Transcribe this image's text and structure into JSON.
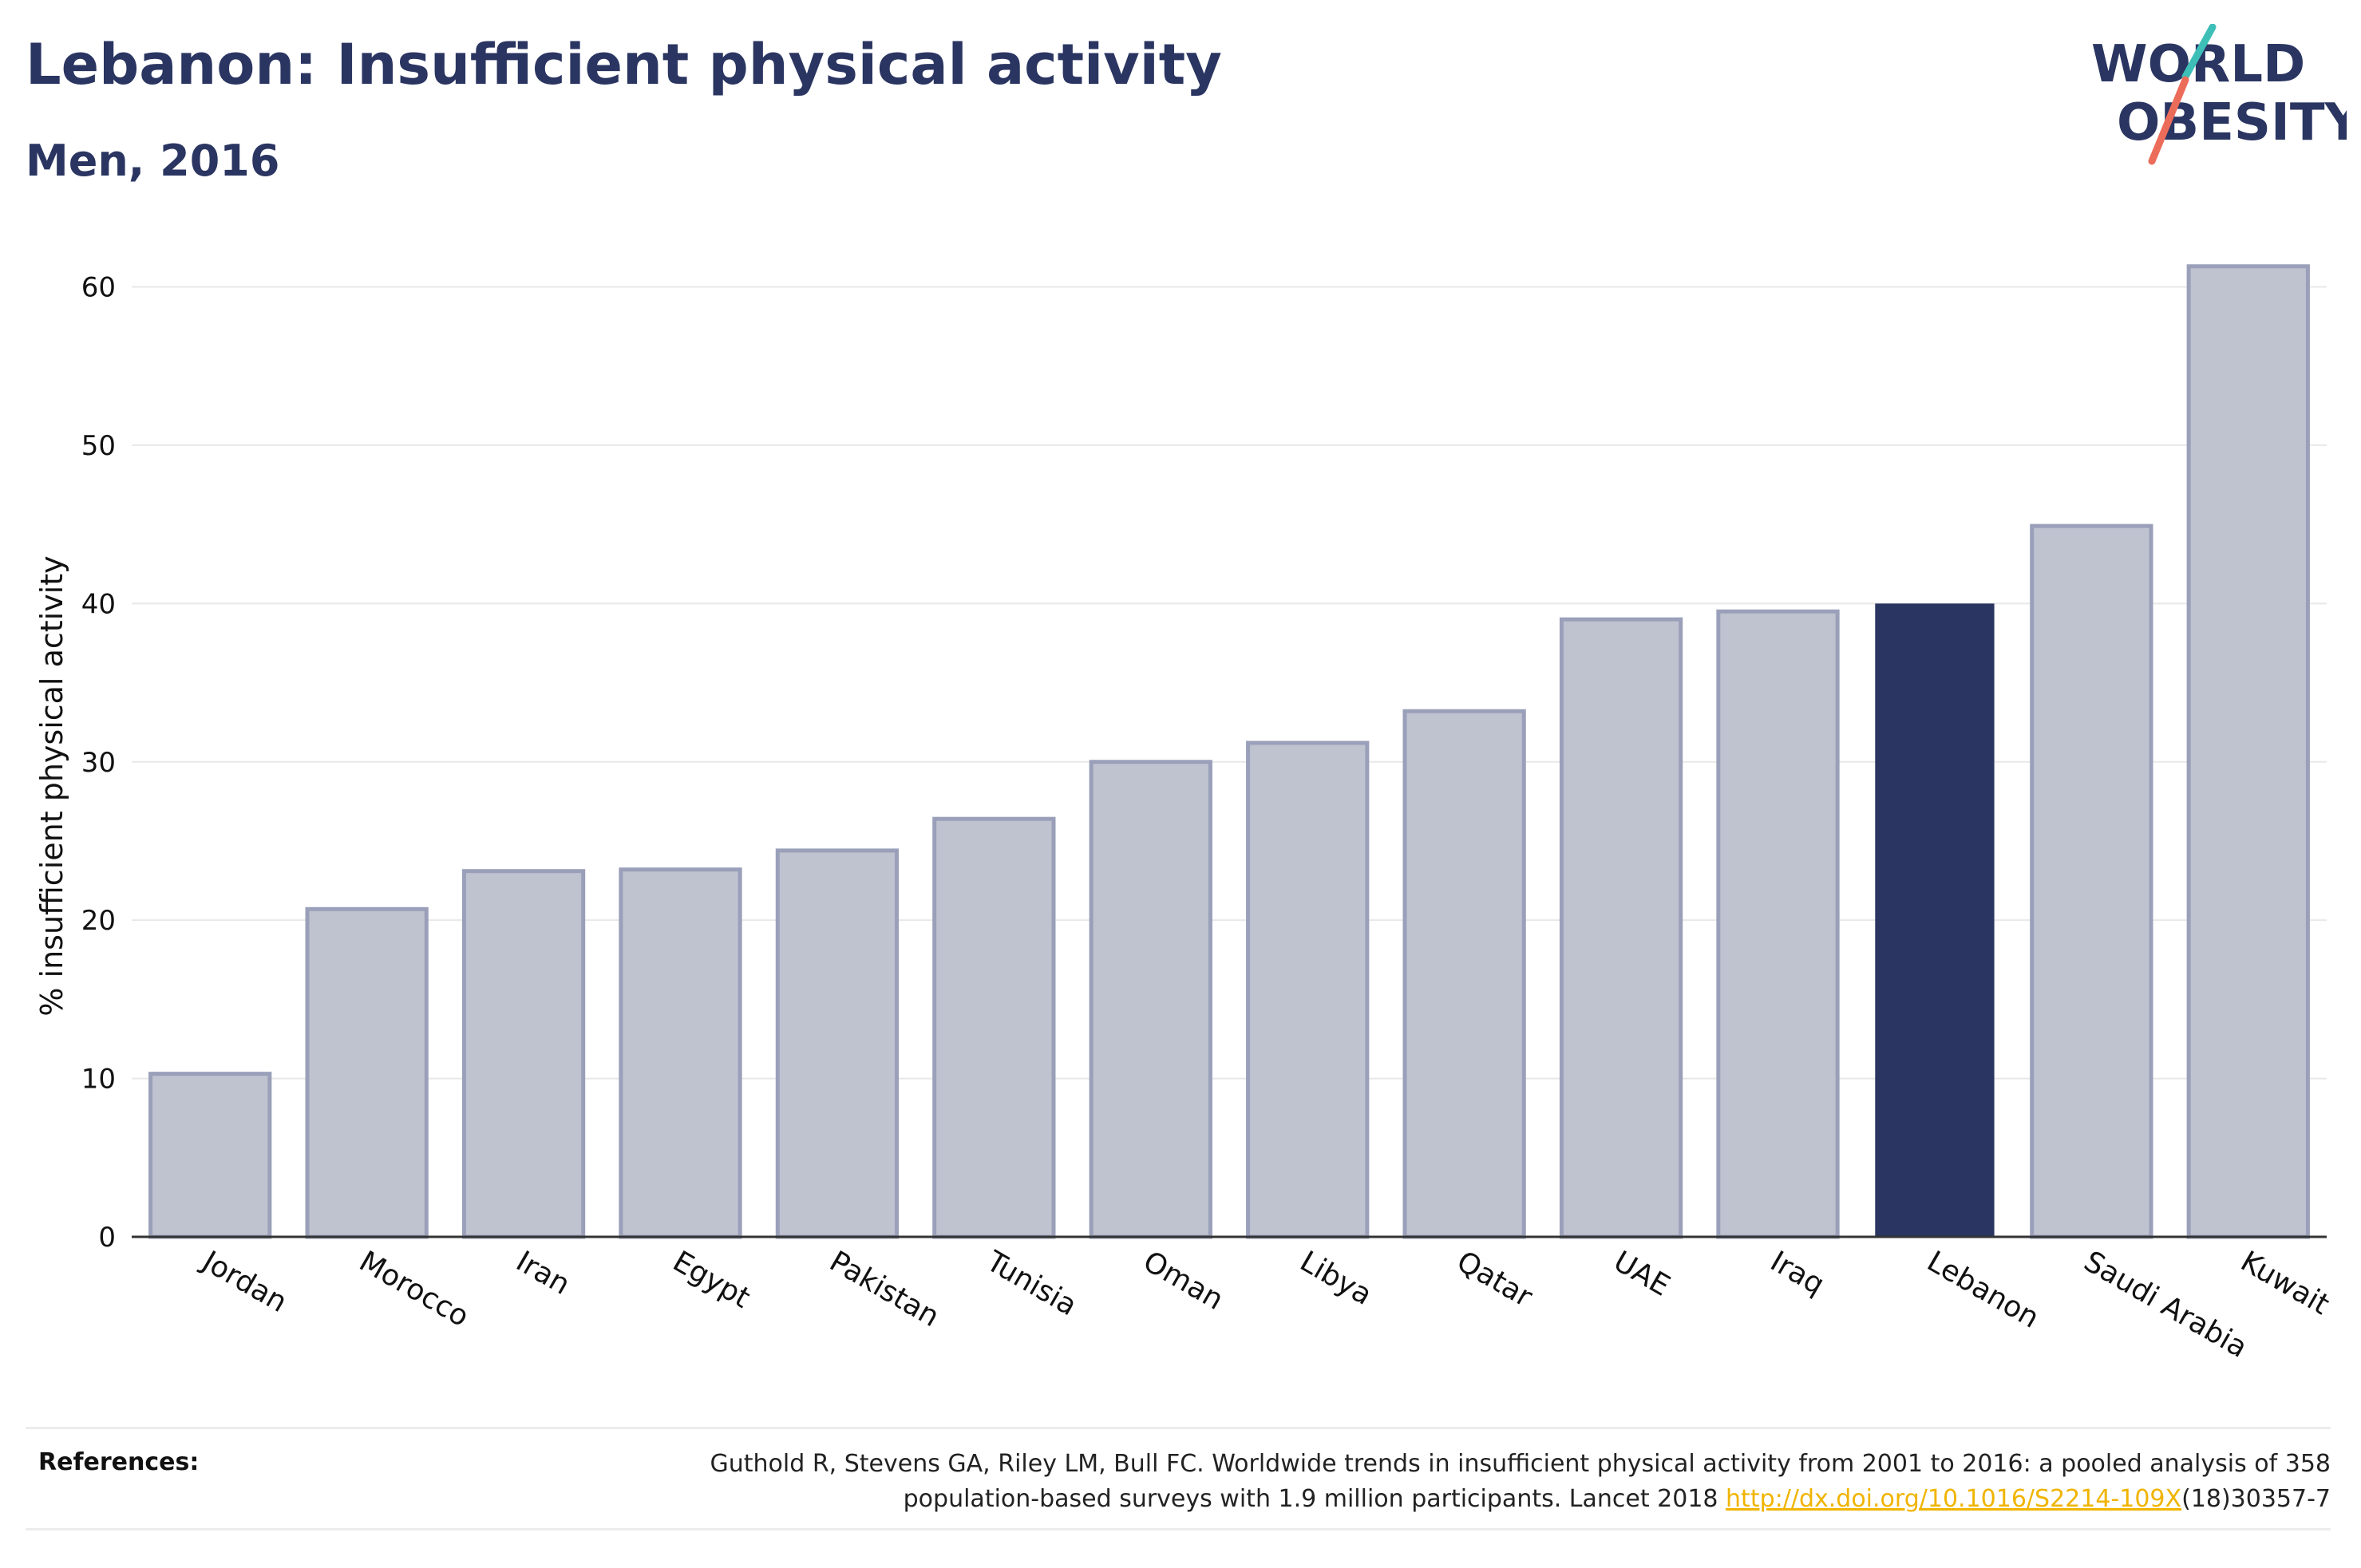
{
  "header": {
    "title": "Lebanon: Insufficient physical activity",
    "subtitle": "Men, 2016"
  },
  "logo": {
    "line1": "WORLD",
    "line2": "OBESITY",
    "colors": {
      "text": "#2a3561",
      "slash_top": "#3dbfb8",
      "slash_bottom": "#ec6c5a"
    }
  },
  "chart_data": {
    "type": "bar",
    "title": "Lebanon: Insufficient physical activity",
    "subtitle": "Men, 2016",
    "ylabel": "% insufficient physical activity",
    "xlabel": "",
    "ylim": [
      0,
      63
    ],
    "yticks": [
      0,
      10,
      20,
      30,
      40,
      50,
      60
    ],
    "grid": true,
    "highlight": "Lebanon",
    "colors": {
      "bar": "#bfc2cf",
      "bar_edge": "#9aa0b9",
      "highlight": "#2a3561"
    },
    "categories": [
      "Jordan",
      "Morocco",
      "Iran",
      "Egypt",
      "Pakistan",
      "Tunisia",
      "Oman",
      "Libya",
      "Qatar",
      "UAE",
      "Iraq",
      "Lebanon",
      "Saudi Arabia",
      "Kuwait"
    ],
    "values": [
      10.3,
      20.7,
      23.1,
      23.2,
      24.4,
      26.4,
      30.0,
      31.2,
      33.2,
      39.0,
      39.5,
      40.0,
      44.9,
      61.3
    ]
  },
  "references": {
    "label": "References:",
    "line1": "Guthold R, Stevens GA, Riley LM, Bull FC. Worldwide trends in insufficient physical activity from 2001 to 2016: a pooled analysis of 358",
    "line2_pre": "population-based surveys with 1.9 million participants. Lancet 2018 ",
    "link": "http://dx.doi.org/10.1016/S2214-109X",
    "line2_post": "(18)30357-7"
  }
}
